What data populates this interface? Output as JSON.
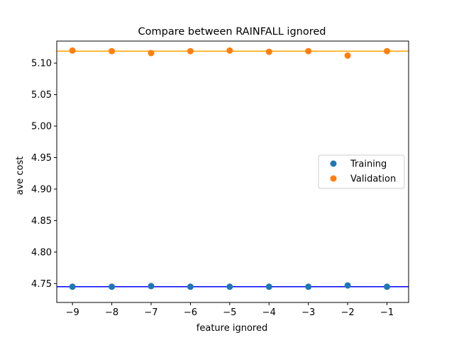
{
  "chart_data": {
    "type": "scatter",
    "title": "Compare between RAINFALL ignored",
    "xlabel": "feature ignored",
    "ylabel": "ave cost",
    "xlim": [
      -9.4,
      -0.45
    ],
    "ylim": [
      4.72,
      5.135
    ],
    "xticks": [
      -9,
      -8,
      -7,
      -6,
      -5,
      -4,
      -3,
      -2,
      -1
    ],
    "xtick_labels": [
      "−9",
      "−8",
      "−7",
      "−6",
      "−5",
      "−4",
      "−3",
      "−2",
      "−1"
    ],
    "yticks": [
      4.75,
      4.8,
      4.85,
      4.9,
      4.95,
      5.0,
      5.05,
      5.1
    ],
    "ytick_labels": [
      "4.75",
      "4.80",
      "4.85",
      "4.90",
      "4.95",
      "5.00",
      "5.05",
      "5.10"
    ],
    "grid": false,
    "legend_position": "center-right",
    "series": [
      {
        "name": "Training",
        "color": "#1f77b4",
        "x": [
          -9,
          -8,
          -7,
          -6,
          -5,
          -4,
          -3,
          -2,
          -1
        ],
        "y": [
          4.745,
          4.745,
          4.746,
          4.745,
          4.745,
          4.745,
          4.745,
          4.747,
          4.745
        ]
      },
      {
        "name": "Validation",
        "color": "#ff7f0e",
        "x": [
          -9,
          -8,
          -7,
          -6,
          -5,
          -4,
          -3,
          -2,
          -1
        ],
        "y": [
          5.12,
          5.119,
          5.116,
          5.119,
          5.12,
          5.118,
          5.119,
          5.112,
          5.119
        ]
      }
    ],
    "reference_lines": [
      {
        "y": 4.745,
        "color": "#0000ff"
      },
      {
        "y": 5.119,
        "color": "#ffa500"
      }
    ]
  }
}
